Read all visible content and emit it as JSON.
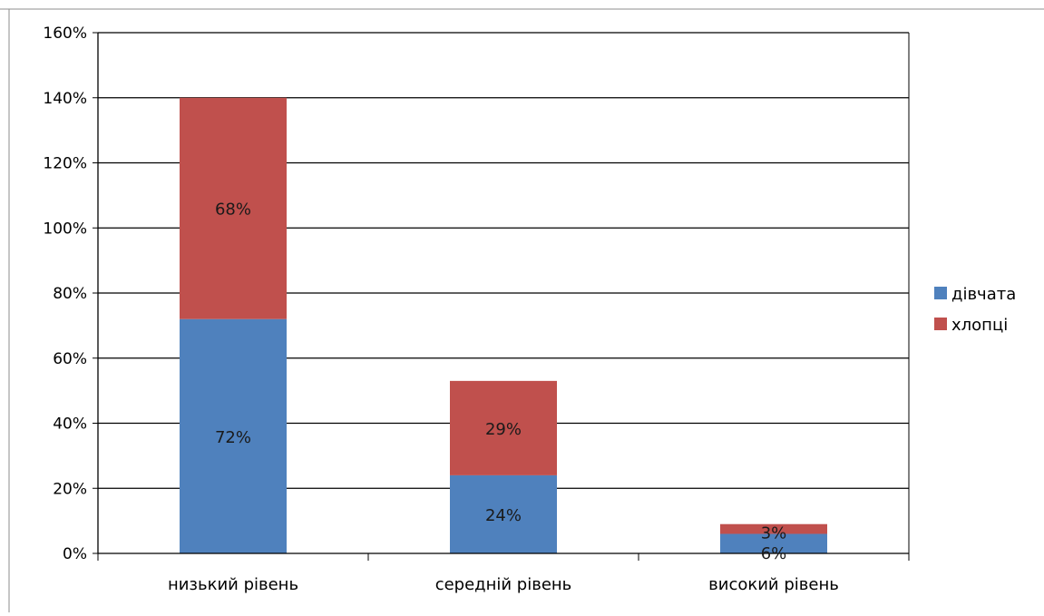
{
  "chart_data": {
    "type": "bar",
    "stacked": true,
    "categories": [
      "низький рівень",
      "середній рівень",
      "високий рівень"
    ],
    "series": [
      {
        "name": "дівчата",
        "values": [
          72,
          24,
          6
        ],
        "labels": [
          "72%",
          "24%",
          "6%"
        ],
        "color": "#4f81bd"
      },
      {
        "name": "хлопці",
        "values": [
          68,
          29,
          3
        ],
        "labels": [
          "68%",
          "29%",
          "3%"
        ],
        "color": "#c0504d"
      }
    ],
    "ylim": [
      0,
      160
    ],
    "yticks": [
      0,
      20,
      40,
      60,
      80,
      100,
      120,
      140,
      160
    ],
    "ytick_labels": [
      "0%",
      "20%",
      "40%",
      "60%",
      "80%",
      "100%",
      "120%",
      "140%",
      "160%"
    ],
    "grid": true,
    "legend_position": "right"
  }
}
